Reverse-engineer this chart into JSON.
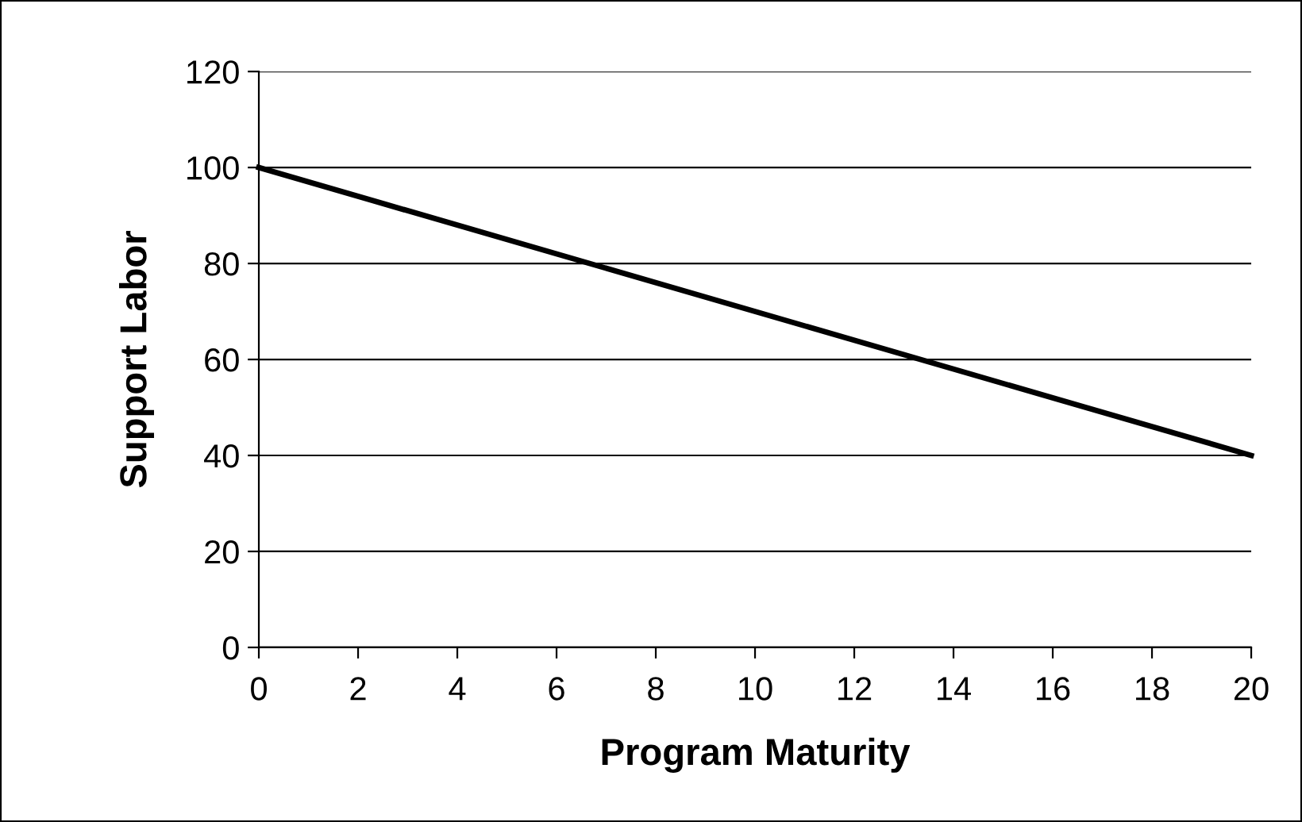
{
  "chart_data": {
    "type": "line",
    "xlabel": "Program Maturity",
    "ylabel": "Support Labor",
    "x": [
      0,
      20
    ],
    "series": [
      {
        "color": "#000000",
        "values": [
          100,
          40
        ]
      }
    ],
    "xlim": [
      0,
      20
    ],
    "xticks": [
      0,
      2,
      4,
      6,
      8,
      10,
      12,
      14,
      16,
      18,
      20
    ],
    "ylim": [
      0,
      120
    ],
    "yticks": [
      0,
      20,
      40,
      60,
      80,
      100,
      120
    ],
    "grid": "y",
    "legend": false,
    "marker": "none",
    "line_style": "solid"
  }
}
